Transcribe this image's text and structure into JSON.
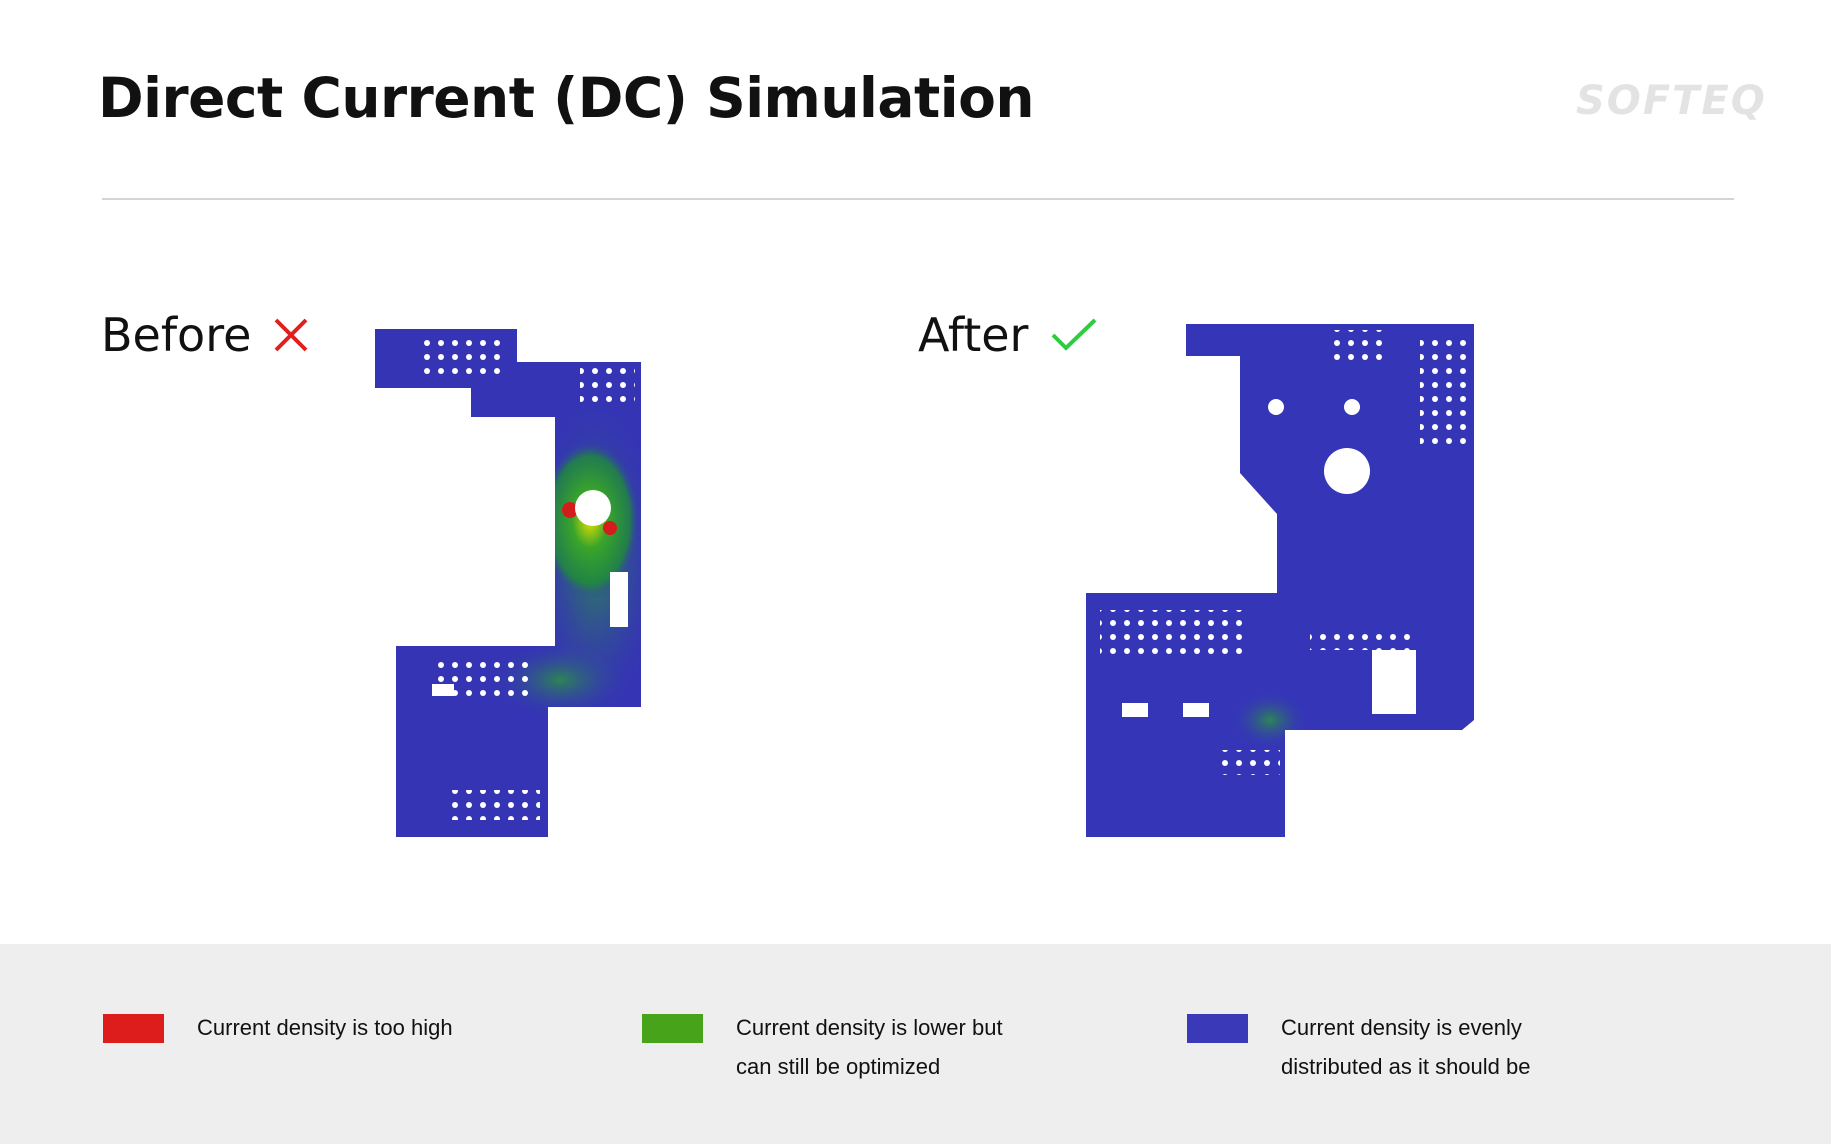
{
  "header": {
    "title": "Direct Current (DC) Simulation",
    "logo": "SOFTEQ"
  },
  "panels": [
    {
      "label": "Before",
      "status_icon": "cross-icon",
      "status_color": "#e02020"
    },
    {
      "label": "After",
      "status_icon": "check-icon",
      "status_color": "#2ecc40"
    }
  ],
  "legend": [
    {
      "color": "#dd1c1c",
      "line1": "Current density is too high",
      "line2": ""
    },
    {
      "color": "#46a31a",
      "line1": "Current density is lower but",
      "line2": "can still be optimized"
    },
    {
      "color": "#3a3ab8",
      "line1": "Current density is evenly",
      "line2": "distributed as it should be"
    }
  ]
}
